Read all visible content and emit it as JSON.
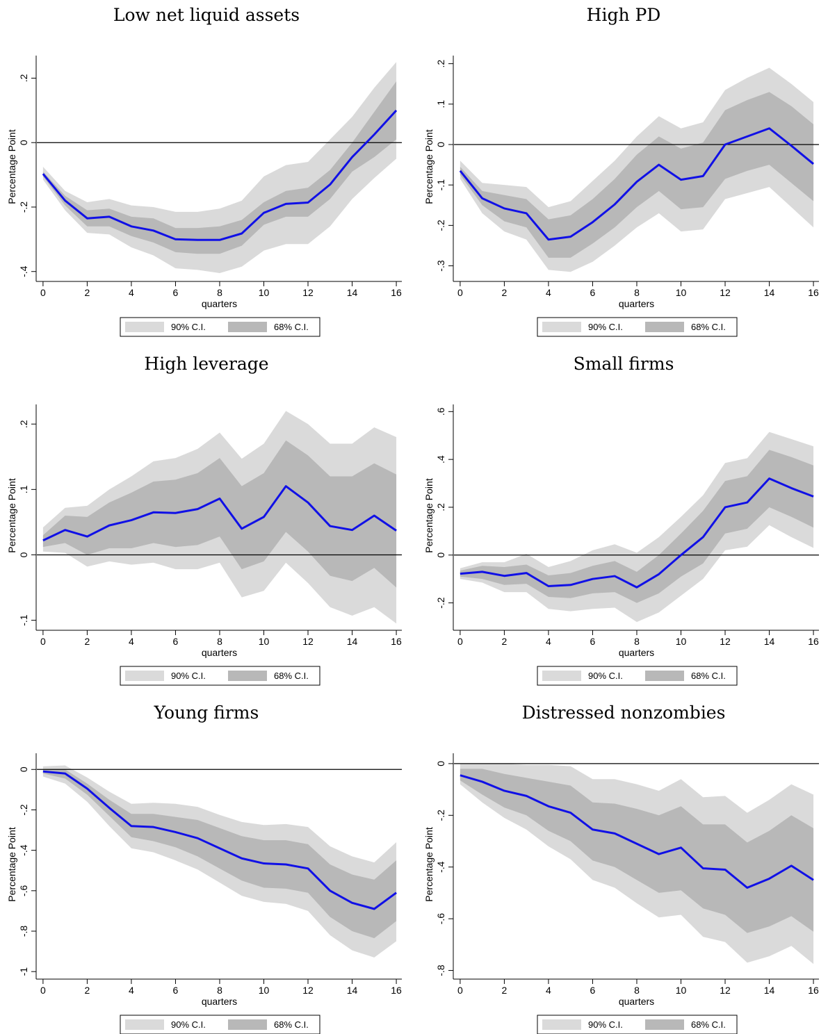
{
  "chart_data": [
    {
      "type": "line",
      "title": "Low net liquid assets",
      "xlabel": "quarters",
      "ylabel": "Percentage Point",
      "x": [
        0,
        1,
        2,
        3,
        4,
        5,
        6,
        7,
        8,
        9,
        10,
        11,
        12,
        13,
        14,
        15,
        16
      ],
      "xlim": [
        -0.28,
        16.25
      ],
      "xticks": [
        0,
        2,
        4,
        6,
        8,
        10,
        12,
        14,
        16
      ],
      "ylim": [
        -0.42,
        0.27
      ],
      "yticks": [
        {
          "value": -0.4,
          "label": "-.4"
        },
        {
          "value": -0.2,
          "label": "-.2"
        },
        0,
        {
          "value": 0.2,
          "label": ".2"
        }
      ],
      "yline": 0,
      "color": "#1010e6",
      "values": [
        -0.097,
        -0.18,
        -0.235,
        -0.23,
        -0.26,
        -0.273,
        -0.3,
        -0.302,
        -0.302,
        -0.282,
        -0.218,
        -0.19,
        -0.186,
        -0.13,
        -0.045,
        0.025,
        0.1
      ],
      "bands": [
        {
          "name": "90% C.I.",
          "color": "#dadada",
          "upper": [
            -0.075,
            -0.15,
            -0.185,
            -0.175,
            -0.195,
            -0.2,
            -0.215,
            -0.215,
            -0.205,
            -0.18,
            -0.105,
            -0.07,
            -0.06,
            0.01,
            0.08,
            0.17,
            0.25
          ],
          "lower": [
            -0.115,
            -0.21,
            -0.28,
            -0.285,
            -0.325,
            -0.35,
            -0.39,
            -0.395,
            -0.405,
            -0.385,
            -0.335,
            -0.315,
            -0.315,
            -0.26,
            -0.175,
            -0.11,
            -0.05
          ]
        },
        {
          "name": "68% C.I.",
          "color": "#b8b8b8",
          "upper": [
            -0.09,
            -0.165,
            -0.21,
            -0.205,
            -0.23,
            -0.235,
            -0.265,
            -0.265,
            -0.26,
            -0.24,
            -0.185,
            -0.15,
            -0.14,
            -0.085,
            0.0,
            0.095,
            0.19
          ],
          "lower": [
            -0.105,
            -0.195,
            -0.26,
            -0.26,
            -0.29,
            -0.31,
            -0.34,
            -0.345,
            -0.345,
            -0.32,
            -0.255,
            -0.23,
            -0.23,
            -0.175,
            -0.09,
            -0.045,
            0.01
          ]
        }
      ]
    },
    {
      "type": "line",
      "title": "High PD",
      "xlabel": "quarters",
      "ylabel": "Percentage Point",
      "x": [
        0,
        1,
        2,
        3,
        4,
        5,
        6,
        7,
        8,
        9,
        10,
        11,
        12,
        13,
        14,
        15,
        16
      ],
      "xlim": [
        -0.28,
        16.25
      ],
      "xticks": [
        0,
        2,
        4,
        6,
        8,
        10,
        12,
        14,
        16
      ],
      "ylim": [
        -0.33,
        0.22
      ],
      "yticks": [
        {
          "value": -0.3,
          "label": "-.3"
        },
        {
          "value": -0.2,
          "label": "-.2"
        },
        {
          "value": -0.1,
          "label": "-.1"
        },
        0,
        {
          "value": 0.1,
          "label": ".1"
        },
        {
          "value": 0.2,
          "label": ".2"
        }
      ],
      "yline": 0,
      "color": "#1010e6",
      "values": [
        -0.065,
        -0.133,
        -0.158,
        -0.17,
        -0.235,
        -0.228,
        -0.192,
        -0.148,
        -0.092,
        -0.05,
        -0.087,
        -0.078,
        0.0,
        0.02,
        0.04,
        -0.003,
        -0.048
      ],
      "bands": [
        {
          "name": "90% C.I.",
          "color": "#dadada",
          "upper": [
            -0.04,
            -0.095,
            -0.1,
            -0.105,
            -0.155,
            -0.14,
            -0.09,
            -0.04,
            0.02,
            0.07,
            0.04,
            0.055,
            0.135,
            0.165,
            0.19,
            0.15,
            0.105
          ],
          "lower": [
            -0.085,
            -0.17,
            -0.215,
            -0.235,
            -0.31,
            -0.315,
            -0.29,
            -0.25,
            -0.205,
            -0.17,
            -0.215,
            -0.21,
            -0.135,
            -0.12,
            -0.105,
            -0.155,
            -0.205
          ]
        },
        {
          "name": "68% C.I.",
          "color": "#b8b8b8",
          "upper": [
            -0.055,
            -0.115,
            -0.125,
            -0.135,
            -0.185,
            -0.175,
            -0.135,
            -0.085,
            -0.025,
            0.02,
            -0.01,
            0.005,
            0.085,
            0.11,
            0.13,
            0.095,
            0.05
          ],
          "lower": [
            -0.075,
            -0.15,
            -0.19,
            -0.205,
            -0.28,
            -0.28,
            -0.245,
            -0.205,
            -0.155,
            -0.115,
            -0.16,
            -0.155,
            -0.085,
            -0.065,
            -0.05,
            -0.095,
            -0.14
          ]
        }
      ]
    },
    {
      "type": "line",
      "title": "High leverage",
      "xlabel": "quarters",
      "ylabel": "Percentage Point",
      "x": [
        0,
        1,
        2,
        3,
        4,
        5,
        6,
        7,
        8,
        9,
        10,
        11,
        12,
        13,
        14,
        15,
        16
      ],
      "xlim": [
        -0.28,
        16.25
      ],
      "xticks": [
        0,
        2,
        4,
        6,
        8,
        10,
        12,
        14,
        16
      ],
      "ylim": [
        -0.11,
        0.23
      ],
      "yticks": [
        {
          "value": -0.1,
          "label": "-.1"
        },
        0,
        {
          "value": 0.1,
          "label": ".1"
        },
        {
          "value": 0.2,
          "label": ".2"
        }
      ],
      "yline": 0,
      "color": "#1010e6",
      "values": [
        0.022,
        0.038,
        0.028,
        0.045,
        0.053,
        0.065,
        0.064,
        0.07,
        0.086,
        0.04,
        0.058,
        0.105,
        0.08,
        0.044,
        0.038,
        0.06,
        0.037
      ],
      "bands": [
        {
          "name": "90% C.I.",
          "color": "#dadada",
          "upper": [
            0.042,
            0.072,
            0.075,
            0.1,
            0.12,
            0.143,
            0.148,
            0.162,
            0.187,
            0.147,
            0.17,
            0.22,
            0.2,
            0.17,
            0.17,
            0.195,
            0.18
          ],
          "lower": [
            0.005,
            0.003,
            -0.018,
            -0.01,
            -0.015,
            -0.012,
            -0.022,
            -0.022,
            -0.012,
            -0.065,
            -0.055,
            -0.012,
            -0.043,
            -0.08,
            -0.093,
            -0.08,
            -0.105
          ]
        },
        {
          "name": "68% C.I.",
          "color": "#b8b8b8",
          "upper": [
            0.03,
            0.06,
            0.058,
            0.08,
            0.095,
            0.112,
            0.115,
            0.125,
            0.148,
            0.105,
            0.125,
            0.175,
            0.152,
            0.12,
            0.12,
            0.14,
            0.123
          ],
          "lower": [
            0.012,
            0.018,
            0.0,
            0.01,
            0.01,
            0.018,
            0.012,
            0.015,
            0.028,
            -0.022,
            -0.01,
            0.035,
            0.005,
            -0.032,
            -0.04,
            -0.02,
            -0.05
          ]
        }
      ]
    },
    {
      "type": "line",
      "title": "Small firms",
      "xlabel": "quarters",
      "ylabel": "Percentage Point",
      "x": [
        0,
        1,
        2,
        3,
        4,
        5,
        6,
        7,
        8,
        9,
        10,
        11,
        12,
        13,
        14,
        15,
        16
      ],
      "xlim": [
        -0.28,
        16.25
      ],
      "xticks": [
        0,
        2,
        4,
        6,
        8,
        10,
        12,
        14,
        16
      ],
      "ylim": [
        -0.3,
        0.63
      ],
      "yticks": [
        {
          "value": -0.2,
          "label": "-.2"
        },
        0,
        {
          "value": 0.2,
          "label": ".2"
        },
        {
          "value": 0.4,
          "label": ".4"
        },
        {
          "value": 0.6,
          "label": ".6"
        }
      ],
      "yline": 0,
      "color": "#1010e6",
      "values": [
        -0.078,
        -0.07,
        -0.087,
        -0.075,
        -0.13,
        -0.125,
        -0.1,
        -0.088,
        -0.135,
        -0.08,
        0.0,
        0.075,
        0.2,
        0.22,
        0.32,
        0.28,
        0.245
      ],
      "bands": [
        {
          "name": "90% C.I.",
          "color": "#dadada",
          "upper": [
            -0.055,
            -0.03,
            -0.03,
            0.005,
            -0.05,
            -0.025,
            0.02,
            0.045,
            0.01,
            0.075,
            0.16,
            0.25,
            0.385,
            0.405,
            0.515,
            0.485,
            0.455
          ],
          "lower": [
            -0.1,
            -0.115,
            -0.155,
            -0.155,
            -0.225,
            -0.235,
            -0.225,
            -0.22,
            -0.28,
            -0.24,
            -0.17,
            -0.1,
            0.02,
            0.035,
            0.125,
            0.075,
            0.03
          ]
        },
        {
          "name": "68% C.I.",
          "color": "#b8b8b8",
          "upper": [
            -0.065,
            -0.045,
            -0.05,
            -0.04,
            -0.085,
            -0.075,
            -0.045,
            -0.025,
            -0.07,
            0.0,
            0.09,
            0.185,
            0.31,
            0.33,
            0.44,
            0.41,
            0.375
          ],
          "lower": [
            -0.09,
            -0.1,
            -0.125,
            -0.12,
            -0.175,
            -0.18,
            -0.16,
            -0.155,
            -0.2,
            -0.16,
            -0.09,
            -0.035,
            0.09,
            0.11,
            0.2,
            0.16,
            0.115
          ]
        }
      ]
    },
    {
      "type": "line",
      "title": "Young firms",
      "xlabel": "quarters",
      "ylabel": "Percentage Point",
      "x": [
        0,
        1,
        2,
        3,
        4,
        5,
        6,
        7,
        8,
        9,
        10,
        11,
        12,
        13,
        14,
        15,
        16
      ],
      "xlim": [
        -0.28,
        16.25
      ],
      "xticks": [
        0,
        2,
        4,
        6,
        8,
        10,
        12,
        14,
        16
      ],
      "ylim": [
        -1.02,
        0.08
      ],
      "yticks": [
        -1,
        {
          "value": -0.8,
          "label": "-.8"
        },
        {
          "value": -0.6,
          "label": "-.6"
        },
        {
          "value": -0.4,
          "label": "-.4"
        },
        {
          "value": -0.2,
          "label": "-.2"
        },
        0
      ],
      "yline": 0,
      "color": "#1010e6",
      "values": [
        -0.01,
        -0.02,
        -0.095,
        -0.19,
        -0.28,
        -0.285,
        -0.31,
        -0.34,
        -0.39,
        -0.44,
        -0.465,
        -0.47,
        -0.49,
        -0.6,
        -0.66,
        -0.69,
        -0.61
      ],
      "bands": [
        {
          "name": "90% C.I.",
          "color": "#dadada",
          "upper": [
            0.015,
            0.02,
            -0.04,
            -0.11,
            -0.17,
            -0.165,
            -0.17,
            -0.185,
            -0.225,
            -0.26,
            -0.275,
            -0.27,
            -0.285,
            -0.38,
            -0.43,
            -0.46,
            -0.36
          ],
          "lower": [
            -0.035,
            -0.07,
            -0.16,
            -0.28,
            -0.39,
            -0.41,
            -0.45,
            -0.495,
            -0.56,
            -0.625,
            -0.655,
            -0.665,
            -0.7,
            -0.82,
            -0.895,
            -0.93,
            -0.85
          ]
        },
        {
          "name": "68% C.I.",
          "color": "#b8b8b8",
          "upper": [
            0.0,
            0.0,
            -0.07,
            -0.15,
            -0.22,
            -0.22,
            -0.235,
            -0.25,
            -0.29,
            -0.33,
            -0.35,
            -0.35,
            -0.37,
            -0.47,
            -0.52,
            -0.545,
            -0.45
          ],
          "lower": [
            -0.02,
            -0.045,
            -0.125,
            -0.23,
            -0.335,
            -0.355,
            -0.385,
            -0.43,
            -0.49,
            -0.55,
            -0.585,
            -0.59,
            -0.61,
            -0.73,
            -0.8,
            -0.835,
            -0.75
          ]
        }
      ]
    },
    {
      "type": "line",
      "title": "Distressed nonzombies",
      "xlabel": "quarters",
      "ylabel": "Percentage Point",
      "x": [
        0,
        1,
        2,
        3,
        4,
        5,
        6,
        7,
        8,
        9,
        10,
        11,
        12,
        13,
        14,
        15,
        16
      ],
      "xlim": [
        -0.28,
        16.25
      ],
      "xticks": [
        0,
        2,
        4,
        6,
        8,
        10,
        12,
        14,
        16
      ],
      "ylim": [
        -0.82,
        0.04
      ],
      "yticks": [
        {
          "value": -0.8,
          "label": "-.8"
        },
        {
          "value": -0.6,
          "label": "-.6"
        },
        {
          "value": -0.4,
          "label": "-.4"
        },
        {
          "value": -0.2,
          "label": "-.2"
        },
        0
      ],
      "yline": 0,
      "color": "#1010e6",
      "values": [
        -0.045,
        -0.07,
        -0.105,
        -0.125,
        -0.165,
        -0.19,
        -0.255,
        -0.27,
        -0.31,
        -0.35,
        -0.325,
        -0.405,
        -0.41,
        -0.48,
        -0.445,
        -0.395,
        -0.45
      ],
      "bands": [
        {
          "name": "90% C.I.",
          "color": "#dadada",
          "upper": [
            0.0,
            0.0,
            0.0,
            -0.005,
            -0.005,
            -0.01,
            -0.06,
            -0.06,
            -0.08,
            -0.105,
            -0.06,
            -0.13,
            -0.125,
            -0.19,
            -0.14,
            -0.08,
            -0.12
          ],
          "lower": [
            -0.08,
            -0.15,
            -0.21,
            -0.255,
            -0.32,
            -0.37,
            -0.45,
            -0.48,
            -0.54,
            -0.595,
            -0.585,
            -0.67,
            -0.69,
            -0.77,
            -0.745,
            -0.705,
            -0.775
          ]
        },
        {
          "name": "68% C.I.",
          "color": "#b8b8b8",
          "upper": [
            -0.02,
            -0.02,
            -0.04,
            -0.055,
            -0.07,
            -0.085,
            -0.15,
            -0.155,
            -0.175,
            -0.2,
            -0.165,
            -0.235,
            -0.235,
            -0.305,
            -0.26,
            -0.2,
            -0.25
          ],
          "lower": [
            -0.065,
            -0.12,
            -0.17,
            -0.2,
            -0.26,
            -0.3,
            -0.375,
            -0.4,
            -0.45,
            -0.5,
            -0.49,
            -0.56,
            -0.585,
            -0.655,
            -0.63,
            -0.59,
            -0.65
          ]
        }
      ]
    }
  ]
}
